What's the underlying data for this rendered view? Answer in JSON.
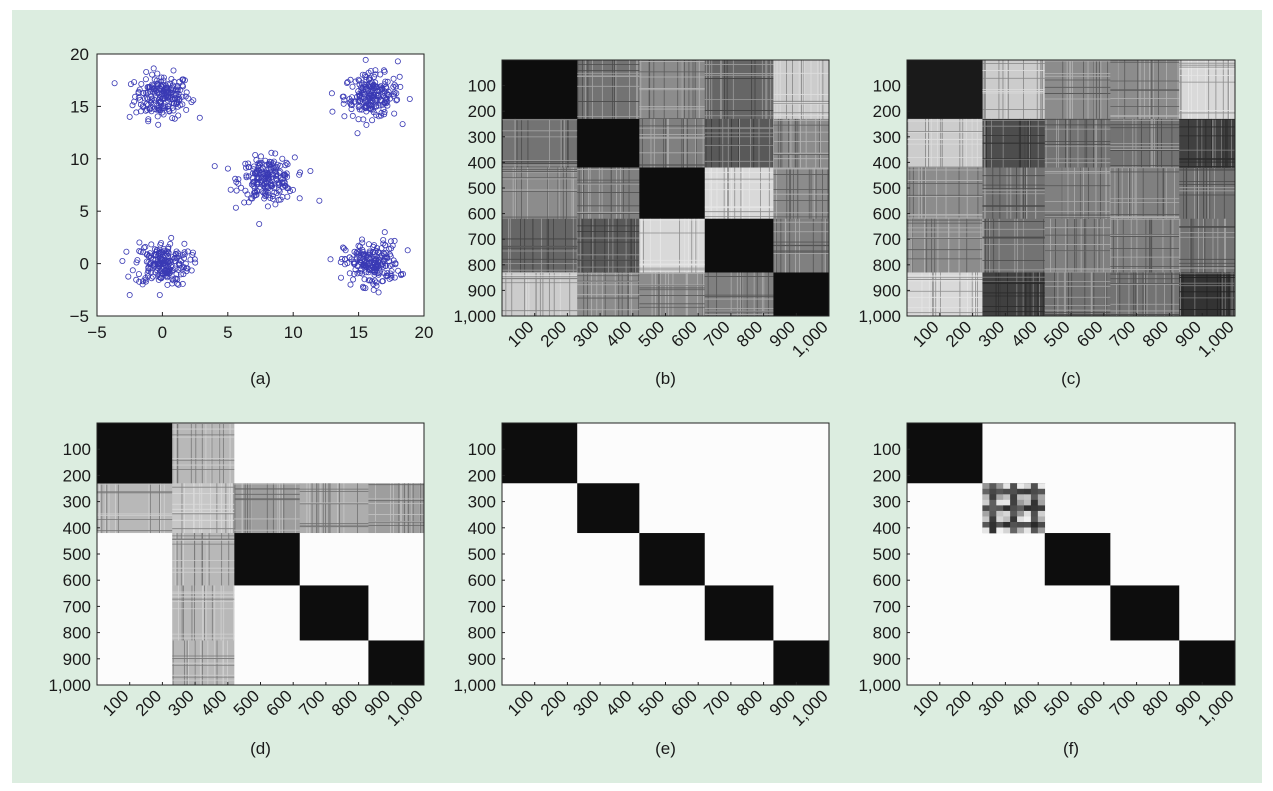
{
  "colors": {
    "background": "#dcede0",
    "scatter_marker": "#3a3ab4",
    "block_dark": "#0a0a0a",
    "block_white": "#fdfdfd"
  },
  "chart_data": [
    {
      "panel": "(a)",
      "type": "scatter",
      "marker": "open-circle",
      "xlim": [
        -5,
        20
      ],
      "ylim": [
        -5,
        20
      ],
      "xticks": [
        "−5",
        "0",
        "5",
        "10",
        "15",
        "20"
      ],
      "yticks": [
        "−5",
        "0",
        "5",
        "10",
        "15",
        "20"
      ],
      "clusters": [
        {
          "center": [
            0,
            16
          ],
          "count": 200
        },
        {
          "center": [
            16,
            16
          ],
          "count": 200
        },
        {
          "center": [
            8,
            8
          ],
          "count": 200
        },
        {
          "center": [
            0,
            0
          ],
          "count": 200
        },
        {
          "center": [
            16,
            0
          ],
          "count": 200
        }
      ],
      "outliers": [
        [
          -2.5,
          14
        ],
        [
          4,
          9.3
        ],
        [
          12,
          6
        ],
        [
          13,
          14.5
        ],
        [
          18,
          19.3
        ],
        [
          17,
          3
        ],
        [
          -2.5,
          -3
        ]
      ]
    },
    {
      "panel": "(b)",
      "type": "heatmap",
      "xticks": [
        "100",
        "200",
        "300",
        "400",
        "500",
        "600",
        "700",
        "800",
        "900",
        "1,000"
      ],
      "yticks": [
        "100",
        "200",
        "300",
        "400",
        "500",
        "600",
        "700",
        "800",
        "900",
        "1,000"
      ],
      "block_bounds": [
        0,
        230,
        420,
        620,
        830,
        1000
      ],
      "block_gray_levels": [
        [
          0.05,
          0.45,
          0.55,
          0.4,
          0.8
        ],
        [
          0.45,
          0.05,
          0.5,
          0.35,
          0.55
        ],
        [
          0.55,
          0.5,
          0.05,
          0.85,
          0.55
        ],
        [
          0.4,
          0.35,
          0.85,
          0.05,
          0.5
        ],
        [
          0.8,
          0.55,
          0.55,
          0.5,
          0.05
        ]
      ]
    },
    {
      "panel": "(c)",
      "type": "heatmap",
      "xticks": [
        "100",
        "200",
        "300",
        "400",
        "500",
        "600",
        "700",
        "800",
        "900",
        "1,000"
      ],
      "yticks": [
        "100",
        "200",
        "300",
        "400",
        "500",
        "600",
        "700",
        "800",
        "900",
        "1,000"
      ],
      "block_bounds": [
        0,
        230,
        420,
        620,
        830,
        1000
      ],
      "block_gray_levels": [
        [
          0.1,
          0.8,
          0.55,
          0.55,
          0.85
        ],
        [
          0.8,
          0.3,
          0.45,
          0.45,
          0.25
        ],
        [
          0.55,
          0.45,
          0.5,
          0.5,
          0.45
        ],
        [
          0.55,
          0.45,
          0.5,
          0.5,
          0.45
        ],
        [
          0.85,
          0.25,
          0.45,
          0.45,
          0.2
        ]
      ]
    },
    {
      "panel": "(d)",
      "type": "heatmap",
      "xticks": [
        "100",
        "200",
        "300",
        "400",
        "500",
        "600",
        "700",
        "800",
        "900",
        "1,000"
      ],
      "yticks": [
        "100",
        "200",
        "300",
        "400",
        "500",
        "600",
        "700",
        "800",
        "900",
        "1,000"
      ],
      "block_bounds": [
        0,
        230,
        420,
        620,
        830,
        1000
      ],
      "block_gray_levels": [
        [
          0.05,
          0.72,
          0.99,
          0.99,
          0.99
        ],
        [
          0.72,
          0.78,
          0.62,
          0.68,
          0.62
        ],
        [
          0.99,
          0.72,
          0.05,
          0.99,
          0.99
        ],
        [
          0.99,
          0.72,
          0.99,
          0.05,
          0.99
        ],
        [
          0.99,
          0.72,
          0.99,
          0.99,
          0.05
        ]
      ]
    },
    {
      "panel": "(e)",
      "type": "heatmap",
      "xticks": [
        "100",
        "200",
        "300",
        "400",
        "500",
        "600",
        "700",
        "800",
        "900",
        "1,000"
      ],
      "yticks": [
        "100",
        "200",
        "300",
        "400",
        "500",
        "600",
        "700",
        "800",
        "900",
        "1,000"
      ],
      "block_bounds": [
        0,
        230,
        420,
        620,
        830,
        1000
      ],
      "block_gray_levels": [
        [
          0.05,
          0.99,
          0.99,
          0.99,
          0.99
        ],
        [
          0.99,
          0.05,
          0.99,
          0.99,
          0.99
        ],
        [
          0.99,
          0.99,
          0.05,
          0.99,
          0.99
        ],
        [
          0.99,
          0.99,
          0.99,
          0.05,
          0.99
        ],
        [
          0.99,
          0.99,
          0.99,
          0.99,
          0.05
        ]
      ]
    },
    {
      "panel": "(f)",
      "type": "heatmap",
      "xticks": [
        "100",
        "200",
        "300",
        "400",
        "500",
        "600",
        "700",
        "800",
        "900",
        "1,000"
      ],
      "yticks": [
        "100",
        "200",
        "300",
        "400",
        "500",
        "600",
        "700",
        "800",
        "900",
        "1,000"
      ],
      "block_bounds": [
        0,
        230,
        420,
        620,
        830,
        1000
      ],
      "block_gray_levels": [
        [
          0.05,
          0.99,
          0.99,
          0.99,
          0.99
        ],
        [
          0.99,
          0.35,
          0.99,
          0.99,
          0.99
        ],
        [
          0.99,
          0.99,
          0.05,
          0.99,
          0.99
        ],
        [
          0.99,
          0.99,
          0.99,
          0.05,
          0.99
        ],
        [
          0.99,
          0.99,
          0.99,
          0.99,
          0.05
        ]
      ],
      "checkered_block": 1
    }
  ]
}
